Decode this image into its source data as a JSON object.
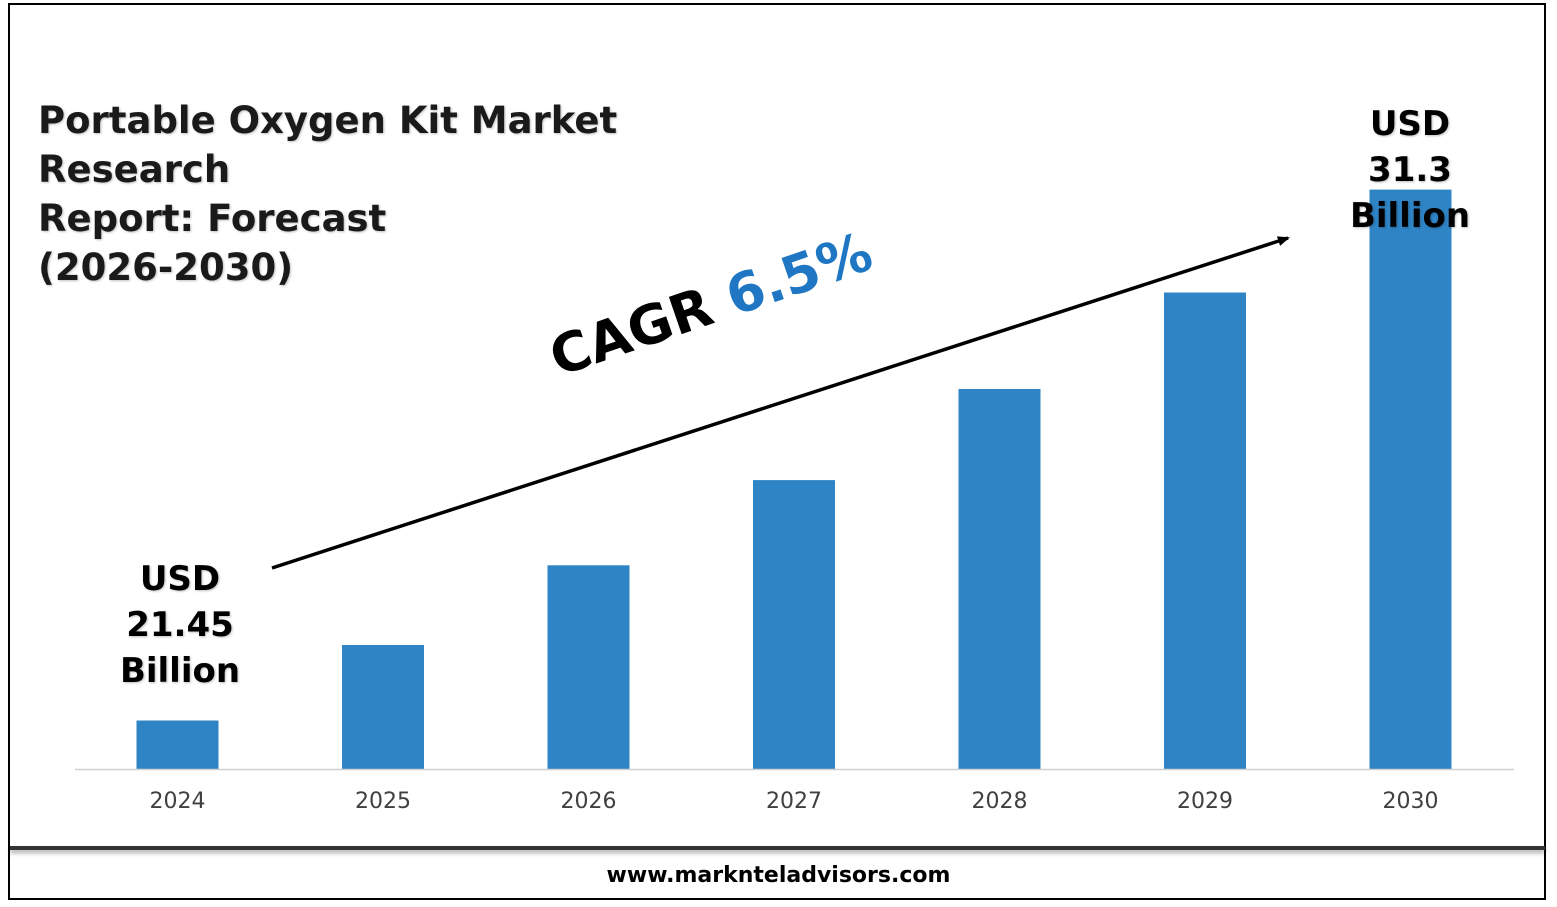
{
  "title": {
    "line1": "Portable Oxygen Kit Market Research",
    "line2": "Report: Forecast",
    "line3": "(2026-2030)"
  },
  "callouts": {
    "start": {
      "currency": "USD",
      "amount": "21.45",
      "unit": "Billion"
    },
    "end": {
      "currency": "USD",
      "amount": "31.3",
      "unit": "Billion"
    }
  },
  "cagr": {
    "label": "CAGR",
    "value": "6.5%"
  },
  "footer": {
    "url": "www.marknteladvisors.com"
  },
  "colors": {
    "bar": "#2f84c5",
    "cagr_value": "#1f77c4",
    "axis": "#d0d0d0",
    "tick_label": "#404040"
  },
  "chart_data": {
    "type": "bar",
    "title": "Portable Oxygen Kit Market Research Report: Forecast (2026-2030)",
    "categories": [
      "2024",
      "2025",
      "2026",
      "2027",
      "2028",
      "2029",
      "2030"
    ],
    "series": [
      {
        "values": [
          21.45,
          22.85,
          24.33,
          25.91,
          27.6,
          29.39,
          31.3
        ]
      }
    ],
    "xlabel": "",
    "ylabel": "",
    "grid": false,
    "legend": "none",
    "annotations": [
      "USD 21.45 Billion",
      "USD 31.3 Billion",
      "CAGR 6.5%"
    ]
  }
}
